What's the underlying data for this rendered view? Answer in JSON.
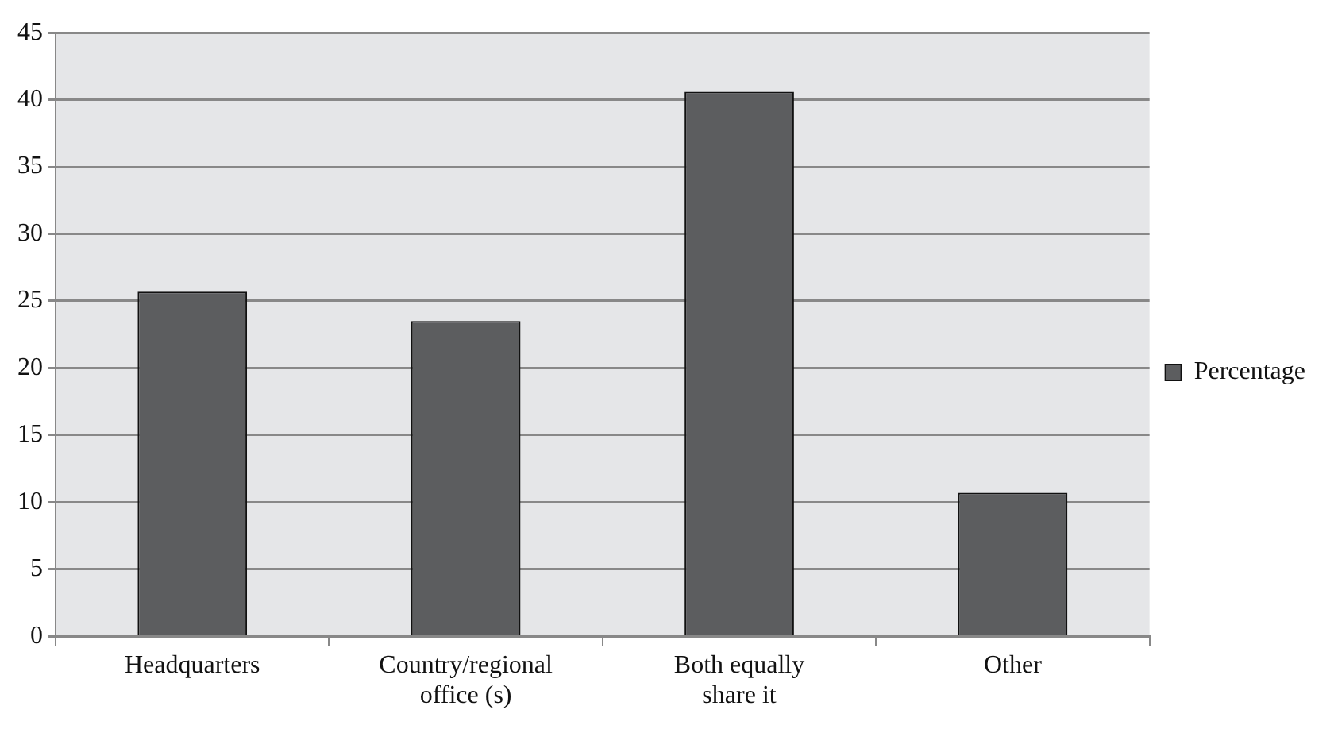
{
  "chart_data": {
    "type": "bar",
    "categories": [
      "Headquarters",
      "Country/regional office (s)",
      "Both equally share it",
      "Other"
    ],
    "series": [
      {
        "name": "Percentage",
        "color": "#5c5d5f",
        "values": [
          25.7,
          23.5,
          40.6,
          10.7
        ]
      }
    ],
    "ylim": [
      0,
      45
    ],
    "yticks": [
      0,
      5,
      10,
      15,
      20,
      25,
      30,
      35,
      40,
      45
    ],
    "grid": "y",
    "legend": "right"
  }
}
